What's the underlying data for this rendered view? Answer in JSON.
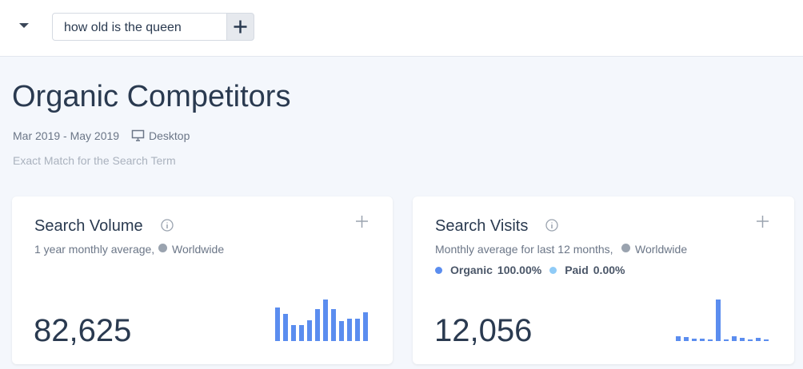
{
  "header": {
    "search_query": "how old is the queen"
  },
  "page": {
    "title": "Organic Competitors",
    "date_range": "Mar 2019 - May 2019",
    "device": "Desktop",
    "note": "Exact Match for the Search Term"
  },
  "cards": [
    {
      "title": "Search Volume",
      "subtitle": "1 year monthly average,",
      "location": "Worldwide",
      "value": "82,625",
      "sparkline": {
        "color": "#5b8def",
        "values": [
          42,
          34,
          20,
          20,
          26,
          40,
          52,
          40,
          25,
          28,
          28,
          36
        ]
      }
    },
    {
      "title": "Search Visits",
      "subtitle": "Monthly average for last 12 months,",
      "location": "Worldwide",
      "legend": [
        {
          "name": "Organic",
          "value": "100.00%",
          "color": "#5b8def"
        },
        {
          "name": "Paid",
          "value": "0.00%",
          "color": "#8fcbf7"
        }
      ],
      "value": "12,056",
      "sparkline": {
        "color": "#5b8def",
        "values": [
          6,
          5,
          3,
          3,
          2,
          52,
          2,
          6,
          4,
          2,
          4,
          2
        ]
      }
    }
  ]
}
